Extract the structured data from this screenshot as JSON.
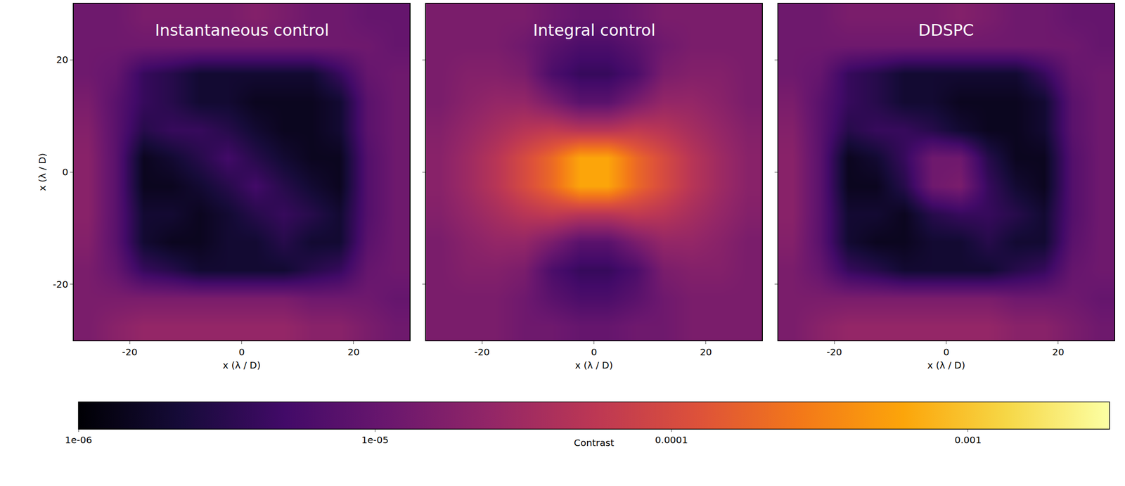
{
  "chart_data": {
    "type": "heatmap",
    "xlabel": "x (λ / D)",
    "ylabel": "x (λ / D)",
    "xlim": [
      -30,
      30
    ],
    "ylim": [
      -30,
      30
    ],
    "xticks": [
      -20,
      0,
      20
    ],
    "yticks": [
      -20,
      0,
      20
    ],
    "x": [
      -27.5,
      -22.5,
      -17.5,
      -12.5,
      -7.5,
      -2.5,
      2.5,
      7.5,
      12.5,
      17.5,
      22.5,
      27.5
    ],
    "y": [
      -27.5,
      -22.5,
      -17.5,
      -12.5,
      -7.5,
      -2.5,
      2.5,
      7.5,
      12.5,
      17.5,
      22.5,
      27.5
    ],
    "colorbar": {
      "title": "Contrast",
      "log": true,
      "range": [
        1e-06,
        0.003
      ],
      "ticks": [
        {
          "value": 1e-06,
          "label": "1e-06"
        },
        {
          "value": 1e-05,
          "label": "1e-05"
        },
        0.0001,
        0.001
      ]
    },
    "panels": [
      {
        "title": "Instantaneous control",
        "z": [
          [
            1.5e-05,
            2e-05,
            2.5e-05,
            2.5e-05,
            2.5e-05,
            2.5e-05,
            2.5e-05,
            2.5e-05,
            2e-05,
            2e-05,
            1.5e-05,
            1.2e-05
          ],
          [
            1.5e-05,
            1.5e-05,
            1.5e-05,
            1.5e-05,
            1.5e-05,
            1.5e-05,
            1.5e-05,
            1.5e-05,
            1.2e-05,
            1.2e-05,
            1.2e-05,
            1e-05
          ],
          [
            1.5e-05,
            1e-05,
            4e-06,
            3e-06,
            2e-06,
            2e-06,
            2e-06,
            2e-06,
            3e-06,
            4e-06,
            1e-05,
            1.2e-05
          ],
          [
            1.8e-05,
            8e-06,
            2e-06,
            1.5e-06,
            1.5e-06,
            2e-06,
            2e-06,
            3e-06,
            2e-06,
            2e-06,
            8e-06,
            1.2e-05
          ],
          [
            2e-05,
            8e-06,
            2e-06,
            2e-06,
            1.5e-06,
            2e-06,
            3e-06,
            4e-06,
            3e-06,
            2e-06,
            7e-06,
            1.2e-05
          ],
          [
            2e-05,
            8e-06,
            1.5e-06,
            1.5e-06,
            2e-06,
            3e-06,
            5e-06,
            3e-06,
            2e-06,
            1.5e-06,
            7e-06,
            1.2e-05
          ],
          [
            2e-05,
            8e-06,
            1.5e-06,
            2e-06,
            3e-06,
            5e-06,
            3e-06,
            2e-06,
            1.5e-06,
            1.5e-06,
            7e-06,
            1.2e-05
          ],
          [
            1.8e-05,
            8e-06,
            3e-06,
            4e-06,
            4e-06,
            3e-06,
            2e-06,
            1.5e-06,
            1.5e-06,
            2e-06,
            8e-06,
            1.2e-05
          ],
          [
            1.5e-05,
            8e-06,
            4e-06,
            3e-06,
            2e-06,
            2e-06,
            1.5e-06,
            1.5e-06,
            1.5e-06,
            2e-06,
            8e-06,
            1.2e-05
          ],
          [
            1.2e-05,
            1e-05,
            4e-06,
            3e-06,
            2e-06,
            2e-06,
            2e-06,
            2e-06,
            2e-06,
            4e-06,
            1e-05,
            1.2e-05
          ],
          [
            1.2e-05,
            1.2e-05,
            1.2e-05,
            1.2e-05,
            1.2e-05,
            1.2e-05,
            1.2e-05,
            1.2e-05,
            1.2e-05,
            1.2e-05,
            1.2e-05,
            1e-05
          ],
          [
            1.2e-05,
            1.2e-05,
            1.5e-05,
            1.5e-05,
            1.5e-05,
            1.5e-05,
            1.8e-05,
            1.5e-05,
            1.2e-05,
            1.2e-05,
            1e-05,
            1e-05
          ]
        ]
      },
      {
        "title": "Integral control",
        "z": [
          [
            1.5e-05,
            1.5e-05,
            1.5e-05,
            1.2e-05,
            1.2e-05,
            1e-05,
            1e-05,
            1.2e-05,
            1.2e-05,
            1.5e-05,
            1.5e-05,
            1.5e-05
          ],
          [
            1.5e-05,
            1.5e-05,
            1.5e-05,
            1.2e-05,
            8e-06,
            6e-06,
            6e-06,
            8e-06,
            1.2e-05,
            1.5e-05,
            1.5e-05,
            1.5e-05
          ],
          [
            1.5e-05,
            1.8e-05,
            1.8e-05,
            1.5e-05,
            6e-06,
            4e-06,
            4e-06,
            6e-06,
            1.5e-05,
            1.8e-05,
            1.8e-05,
            1.5e-05
          ],
          [
            1.5e-05,
            2e-05,
            2.5e-05,
            2.5e-05,
            1.5e-05,
            8e-06,
            8e-06,
            1.5e-05,
            2.5e-05,
            2.5e-05,
            2e-05,
            1.5e-05
          ],
          [
            1.8e-05,
            2.5e-05,
            3.5e-05,
            5e-05,
            6e-05,
            5e-05,
            5e-05,
            6e-05,
            5e-05,
            3.5e-05,
            2.5e-05,
            1.8e-05
          ],
          [
            2e-05,
            3e-05,
            5e-05,
            0.0001,
            0.0002,
            0.0006,
            0.0006,
            0.0002,
            0.0001,
            5e-05,
            3e-05,
            2e-05
          ],
          [
            2e-05,
            3e-05,
            5e-05,
            0.0001,
            0.0002,
            0.0006,
            0.0006,
            0.0002,
            0.0001,
            5e-05,
            3e-05,
            2e-05
          ],
          [
            1.8e-05,
            2.5e-05,
            3.5e-05,
            5e-05,
            6e-05,
            5e-05,
            5e-05,
            6e-05,
            5e-05,
            3.5e-05,
            2.5e-05,
            1.8e-05
          ],
          [
            1.5e-05,
            2e-05,
            2.5e-05,
            2.5e-05,
            1.5e-05,
            8e-06,
            8e-06,
            1.5e-05,
            2.5e-05,
            2.5e-05,
            2e-05,
            1.5e-05
          ],
          [
            1.5e-05,
            1.8e-05,
            1.8e-05,
            1.5e-05,
            6e-06,
            4e-06,
            4e-06,
            6e-06,
            1.5e-05,
            1.8e-05,
            1.8e-05,
            1.5e-05
          ],
          [
            1.5e-05,
            1.5e-05,
            1.5e-05,
            1.2e-05,
            8e-06,
            6e-06,
            6e-06,
            8e-06,
            1.2e-05,
            1.5e-05,
            1.5e-05,
            1.5e-05
          ],
          [
            1.5e-05,
            1.5e-05,
            1.5e-05,
            1.5e-05,
            1.2e-05,
            1e-05,
            1e-05,
            1.2e-05,
            1.5e-05,
            1.5e-05,
            1.5e-05,
            1.5e-05
          ]
        ]
      },
      {
        "title": "DDSPC",
        "z": [
          [
            1.5e-05,
            2e-05,
            2.5e-05,
            2.5e-05,
            2.5e-05,
            2.5e-05,
            2.5e-05,
            2.5e-05,
            2e-05,
            2e-05,
            1.5e-05,
            1.2e-05
          ],
          [
            1.5e-05,
            1.5e-05,
            1.5e-05,
            1.5e-05,
            1.5e-05,
            1.5e-05,
            1.5e-05,
            1.5e-05,
            1.2e-05,
            1.2e-05,
            1.2e-05,
            1e-05
          ],
          [
            1.5e-05,
            1e-05,
            4e-06,
            3e-06,
            2e-06,
            2e-06,
            2e-06,
            2e-06,
            3e-06,
            4e-06,
            1e-05,
            1.2e-05
          ],
          [
            1.8e-05,
            8e-06,
            2e-06,
            1.5e-06,
            1.5e-06,
            2e-06,
            2e-06,
            3e-06,
            2e-06,
            2e-06,
            8e-06,
            1.2e-05
          ],
          [
            2e-05,
            8e-06,
            2e-06,
            2e-06,
            1.5e-06,
            3e-06,
            4e-06,
            4e-06,
            3e-06,
            2e-06,
            7e-06,
            1.2e-05
          ],
          [
            2e-05,
            8e-06,
            1.5e-06,
            1.5e-06,
            3e-06,
            1.2e-05,
            1.5e-05,
            4e-06,
            2e-06,
            1.5e-06,
            7e-06,
            1.2e-05
          ],
          [
            2e-05,
            8e-06,
            1.5e-06,
            2e-06,
            4e-06,
            1.2e-05,
            1.2e-05,
            3e-06,
            1.5e-06,
            1.5e-06,
            7e-06,
            1.2e-05
          ],
          [
            1.8e-05,
            8e-06,
            3e-06,
            4e-06,
            4e-06,
            3e-06,
            2e-06,
            1.5e-06,
            1.5e-06,
            2e-06,
            8e-06,
            1.2e-05
          ],
          [
            1.5e-05,
            8e-06,
            4e-06,
            3e-06,
            2e-06,
            2e-06,
            1.5e-06,
            1.5e-06,
            1.5e-06,
            2e-06,
            8e-06,
            1.2e-05
          ],
          [
            1.2e-05,
            1e-05,
            4e-06,
            3e-06,
            2e-06,
            2e-06,
            2e-06,
            2e-06,
            2e-06,
            4e-06,
            1e-05,
            1.2e-05
          ],
          [
            1.2e-05,
            1.2e-05,
            1.2e-05,
            1.2e-05,
            1.2e-05,
            1.2e-05,
            1.2e-05,
            1.2e-05,
            1.2e-05,
            1.2e-05,
            1.2e-05,
            1e-05
          ],
          [
            1.2e-05,
            1.2e-05,
            1.5e-05,
            1.5e-05,
            1.5e-05,
            1.5e-05,
            1.8e-05,
            1.5e-05,
            1.2e-05,
            1.2e-05,
            1e-05,
            1e-05
          ]
        ]
      }
    ]
  }
}
